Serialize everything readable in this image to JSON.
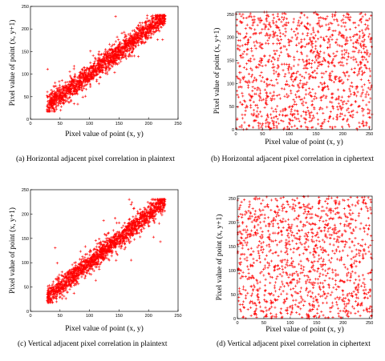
{
  "chart_data": [
    {
      "id": "a",
      "type": "scatter",
      "pattern": "correlated",
      "marker": "+",
      "color": "#ff0000",
      "xlabel": "Pixel value of point (x, y)",
      "ylabel": "Pixel value of point (x, y+1)",
      "xlim": [
        0,
        250
      ],
      "ylim": [
        0,
        250
      ],
      "xticks": [
        0,
        50,
        100,
        150,
        200,
        250
      ],
      "yticks": [
        0,
        50,
        100,
        150,
        200,
        250
      ],
      "caption": "(a) Horizontal adjacent pixel correlation in plaintext"
    },
    {
      "id": "b",
      "type": "scatter",
      "pattern": "uniform",
      "marker": "+",
      "color": "#ff0000",
      "xlabel": "Pixel value of point (x, y)",
      "ylabel": "Pixel value of point (x, y+1)",
      "xlim": [
        0,
        255
      ],
      "ylim": [
        0,
        255
      ],
      "xticks": [
        0,
        50,
        100,
        150,
        200,
        250
      ],
      "yticks": [
        0,
        50,
        100,
        150,
        200,
        250
      ],
      "caption": "(b) Horizontal adjacent pixel correlation in ciphertext"
    },
    {
      "id": "c",
      "type": "scatter",
      "pattern": "correlated",
      "marker": "+",
      "color": "#ff0000",
      "xlabel": "Pixel value of point (x, y)",
      "ylabel": "Pixel value of point (x, y+1)",
      "xlim": [
        0,
        250
      ],
      "ylim": [
        0,
        250
      ],
      "xticks": [
        0,
        50,
        100,
        150,
        200,
        250
      ],
      "yticks": [
        0,
        50,
        100,
        150,
        200,
        250
      ],
      "caption": "(c) Vertical adjacent pixel correlation in plaintext"
    },
    {
      "id": "d",
      "type": "scatter",
      "pattern": "uniform",
      "marker": "+",
      "color": "#ff0000",
      "xlabel": "Pixel value of point (x, y)",
      "ylabel": "Pixel value of point (x, y+1)",
      "xlim": [
        0,
        255
      ],
      "ylim": [
        0,
        255
      ],
      "xticks": [
        0,
        50,
        100,
        150,
        200,
        250
      ],
      "yticks": [
        0,
        50,
        100,
        150,
        200,
        250
      ],
      "caption": "(d) Vertical adjacent pixel correlation in ciphertext"
    }
  ]
}
